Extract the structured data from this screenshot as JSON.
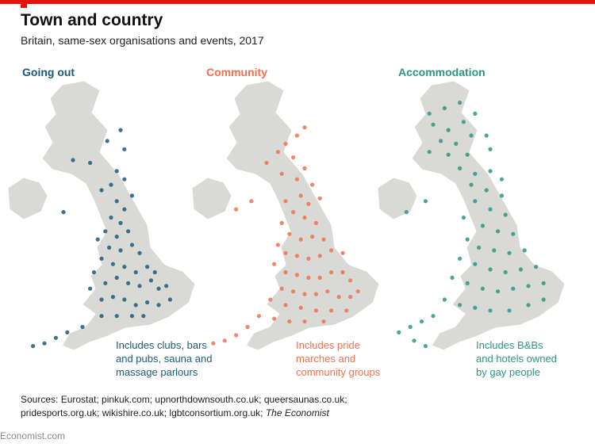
{
  "header": {
    "title": "Town and country",
    "subtitle": "Britain, same-sex organisations and events, 2017"
  },
  "colors": {
    "land": "#d9d9d6",
    "border": "#ffffff",
    "going_out": "#1d5a79",
    "community": "#f0714f",
    "accommodation": "#2e9584",
    "accent_bar": "#e3120b"
  },
  "panels": [
    {
      "title": "Going out",
      "caption": "Includes clubs, bars\nand pubs, sauna and\nmassage parlours",
      "color": "#1d5a79",
      "dots": [
        [
          0.53,
          0.22
        ],
        [
          0.6,
          0.18
        ],
        [
          0.58,
          0.33
        ],
        [
          0.62,
          0.36
        ],
        [
          0.55,
          0.38
        ],
        [
          0.5,
          0.4
        ],
        [
          0.66,
          0.42
        ],
        [
          0.58,
          0.44
        ],
        [
          0.62,
          0.47
        ],
        [
          0.55,
          0.5
        ],
        [
          0.6,
          0.52
        ],
        [
          0.52,
          0.55
        ],
        [
          0.58,
          0.57
        ],
        [
          0.64,
          0.55
        ],
        [
          0.48,
          0.58
        ],
        [
          0.54,
          0.61
        ],
        [
          0.6,
          0.62
        ],
        [
          0.66,
          0.6
        ],
        [
          0.7,
          0.63
        ],
        [
          0.5,
          0.65
        ],
        [
          0.56,
          0.67
        ],
        [
          0.62,
          0.68
        ],
        [
          0.68,
          0.7
        ],
        [
          0.74,
          0.68
        ],
        [
          0.58,
          0.72
        ],
        [
          0.64,
          0.74
        ],
        [
          0.7,
          0.75
        ],
        [
          0.76,
          0.73
        ],
        [
          0.8,
          0.76
        ],
        [
          0.52,
          0.74
        ],
        [
          0.46,
          0.7
        ],
        [
          0.44,
          0.76
        ],
        [
          0.5,
          0.8
        ],
        [
          0.56,
          0.79
        ],
        [
          0.62,
          0.8
        ],
        [
          0.68,
          0.82
        ],
        [
          0.74,
          0.81
        ],
        [
          0.8,
          0.82
        ],
        [
          0.86,
          0.8
        ],
        [
          0.84,
          0.75
        ],
        [
          0.78,
          0.7
        ],
        [
          0.72,
          0.86
        ],
        [
          0.66,
          0.86
        ],
        [
          0.58,
          0.86
        ],
        [
          0.5,
          0.86
        ],
        [
          0.4,
          0.9
        ],
        [
          0.32,
          0.92
        ],
        [
          0.26,
          0.94
        ],
        [
          0.2,
          0.96
        ],
        [
          0.14,
          0.97
        ],
        [
          0.3,
          0.48
        ],
        [
          0.62,
          0.25
        ],
        [
          0.44,
          0.3
        ],
        [
          0.35,
          0.29
        ]
      ]
    },
    {
      "title": "Community",
      "caption": "Includes pride\nmarches and\ncommunity groups",
      "color": "#f0714f",
      "dots": [
        [
          0.56,
          0.2
        ],
        [
          0.6,
          0.17
        ],
        [
          0.5,
          0.23
        ],
        [
          0.54,
          0.28
        ],
        [
          0.6,
          0.32
        ],
        [
          0.48,
          0.34
        ],
        [
          0.56,
          0.36
        ],
        [
          0.64,
          0.38
        ],
        [
          0.58,
          0.42
        ],
        [
          0.5,
          0.44
        ],
        [
          0.62,
          0.45
        ],
        [
          0.68,
          0.43
        ],
        [
          0.54,
          0.48
        ],
        [
          0.6,
          0.5
        ],
        [
          0.66,
          0.52
        ],
        [
          0.48,
          0.52
        ],
        [
          0.52,
          0.56
        ],
        [
          0.58,
          0.58
        ],
        [
          0.64,
          0.57
        ],
        [
          0.7,
          0.58
        ],
        [
          0.46,
          0.6
        ],
        [
          0.5,
          0.63
        ],
        [
          0.56,
          0.64
        ],
        [
          0.62,
          0.65
        ],
        [
          0.68,
          0.64
        ],
        [
          0.74,
          0.62
        ],
        [
          0.8,
          0.63
        ],
        [
          0.44,
          0.67
        ],
        [
          0.5,
          0.7
        ],
        [
          0.56,
          0.71
        ],
        [
          0.62,
          0.72
        ],
        [
          0.68,
          0.72
        ],
        [
          0.74,
          0.7
        ],
        [
          0.8,
          0.7
        ],
        [
          0.84,
          0.73
        ],
        [
          0.48,
          0.76
        ],
        [
          0.54,
          0.77
        ],
        [
          0.6,
          0.78
        ],
        [
          0.66,
          0.78
        ],
        [
          0.72,
          0.77
        ],
        [
          0.78,
          0.79
        ],
        [
          0.84,
          0.79
        ],
        [
          0.88,
          0.77
        ],
        [
          0.42,
          0.8
        ],
        [
          0.5,
          0.82
        ],
        [
          0.58,
          0.83
        ],
        [
          0.66,
          0.84
        ],
        [
          0.74,
          0.84
        ],
        [
          0.82,
          0.84
        ],
        [
          0.36,
          0.86
        ],
        [
          0.44,
          0.87
        ],
        [
          0.52,
          0.88
        ],
        [
          0.6,
          0.88
        ],
        [
          0.7,
          0.88
        ],
        [
          0.3,
          0.9
        ],
        [
          0.24,
          0.93
        ],
        [
          0.18,
          0.95
        ],
        [
          0.12,
          0.96
        ],
        [
          0.24,
          0.47
        ],
        [
          0.32,
          0.44
        ],
        [
          0.4,
          0.3
        ],
        [
          0.46,
          0.26
        ]
      ]
    },
    {
      "title": "Accommodation",
      "caption": "Includes B&Bs\nand hotels owned\nby gay people",
      "color": "#2e9584",
      "dots": [
        [
          0.28,
          0.12
        ],
        [
          0.36,
          0.1
        ],
        [
          0.44,
          0.08
        ],
        [
          0.3,
          0.16
        ],
        [
          0.38,
          0.18
        ],
        [
          0.46,
          0.15
        ],
        [
          0.52,
          0.12
        ],
        [
          0.34,
          0.22
        ],
        [
          0.42,
          0.23
        ],
        [
          0.5,
          0.2
        ],
        [
          0.58,
          0.2
        ],
        [
          0.28,
          0.26
        ],
        [
          0.38,
          0.27
        ],
        [
          0.48,
          0.27
        ],
        [
          0.6,
          0.25
        ],
        [
          0.44,
          0.32
        ],
        [
          0.52,
          0.34
        ],
        [
          0.6,
          0.33
        ],
        [
          0.66,
          0.36
        ],
        [
          0.5,
          0.38
        ],
        [
          0.58,
          0.4
        ],
        [
          0.66,
          0.42
        ],
        [
          0.52,
          0.44
        ],
        [
          0.6,
          0.47
        ],
        [
          0.68,
          0.49
        ],
        [
          0.46,
          0.5
        ],
        [
          0.56,
          0.53
        ],
        [
          0.64,
          0.55
        ],
        [
          0.72,
          0.56
        ],
        [
          0.48,
          0.58
        ],
        [
          0.54,
          0.61
        ],
        [
          0.62,
          0.62
        ],
        [
          0.7,
          0.63
        ],
        [
          0.78,
          0.62
        ],
        [
          0.44,
          0.65
        ],
        [
          0.52,
          0.67
        ],
        [
          0.6,
          0.69
        ],
        [
          0.68,
          0.7
        ],
        [
          0.76,
          0.69
        ],
        [
          0.84,
          0.68
        ],
        [
          0.4,
          0.72
        ],
        [
          0.48,
          0.74
        ],
        [
          0.56,
          0.76
        ],
        [
          0.64,
          0.77
        ],
        [
          0.72,
          0.76
        ],
        [
          0.8,
          0.75
        ],
        [
          0.88,
          0.74
        ],
        [
          0.36,
          0.8
        ],
        [
          0.44,
          0.82
        ],
        [
          0.52,
          0.83
        ],
        [
          0.6,
          0.84
        ],
        [
          0.7,
          0.84
        ],
        [
          0.8,
          0.82
        ],
        [
          0.88,
          0.8
        ],
        [
          0.3,
          0.86
        ],
        [
          0.24,
          0.88
        ],
        [
          0.18,
          0.9
        ],
        [
          0.12,
          0.92
        ],
        [
          0.2,
          0.95
        ],
        [
          0.26,
          0.97
        ],
        [
          0.16,
          0.48
        ],
        [
          0.26,
          0.44
        ]
      ]
    }
  ],
  "sources": {
    "line1": "Sources: Eurostat; pinkuk.com; upnorthdownsouth.co.uk; queersaunas.co.uk;",
    "line2": "pridesports.org.uk; wikishire.co.uk; lgbtconsortium.org.uk;",
    "line2_italic": "The Economist"
  },
  "footer": {
    "brand": "Economist.com"
  }
}
